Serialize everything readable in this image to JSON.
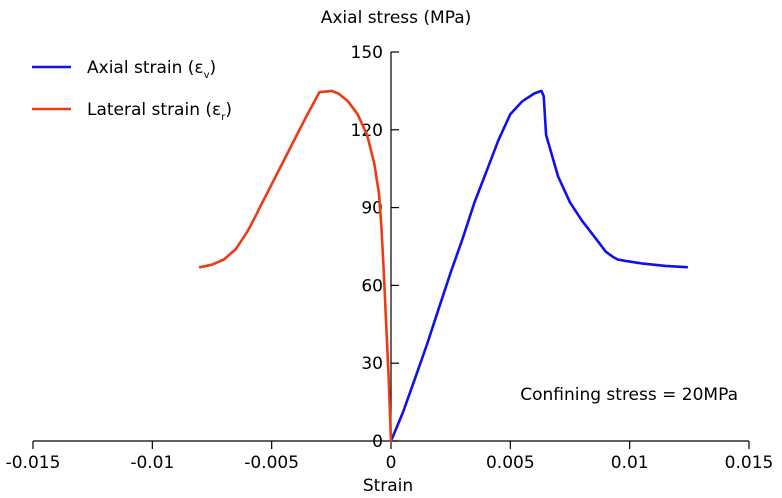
{
  "chart_data": {
    "type": "line",
    "title": "Axial stress (MPa)",
    "xlabel": "Strain",
    "ylabel": "Axial stress (MPa)",
    "xlim": [
      -0.015,
      0.015
    ],
    "ylim": [
      0,
      150
    ],
    "xticks": [
      -0.015,
      -0.01,
      -0.005,
      0,
      0.005,
      0.01,
      0.015
    ],
    "xtick_labels": [
      "-0.015",
      "-0.01",
      "-0.005",
      "0",
      "0.005",
      "0.01",
      "0.015"
    ],
    "yticks": [
      0,
      30,
      60,
      90,
      120,
      150
    ],
    "ytick_labels": [
      "0",
      "30",
      "60",
      "90",
      "120",
      "150"
    ],
    "annotation": "Confining stress = 20MPa",
    "legend_position": "top-left",
    "series": [
      {
        "name": "Axial strain",
        "legend_label": "Axial strain (ε",
        "legend_sub": "v",
        "legend_close": ")",
        "color": "#1010ee",
        "x": [
          0,
          0.0005,
          0.001,
          0.0015,
          0.002,
          0.0025,
          0.003,
          0.0035,
          0.004,
          0.0045,
          0.005,
          0.0055,
          0.006,
          0.0063,
          0.0064,
          0.0065,
          0.007,
          0.0075,
          0.008,
          0.0085,
          0.009,
          0.0093,
          0.0095,
          0.0098,
          0.0105,
          0.0115,
          0.0124
        ],
        "y": [
          0,
          11,
          24,
          37,
          51,
          65,
          78,
          92,
          104,
          116,
          126,
          131,
          134,
          135,
          133,
          118,
          102,
          92,
          85,
          79,
          73,
          71,
          70,
          69.5,
          68.5,
          67.5,
          67
        ]
      },
      {
        "name": "Lateral strain",
        "legend_label": "Lateral strain (ε",
        "legend_sub": "r",
        "legend_close": ")",
        "color": "#ee3b16",
        "x": [
          0,
          -0.0001,
          -0.0002,
          -0.0003,
          -0.0004,
          -0.0005,
          -0.0007,
          -0.001,
          -0.0014,
          -0.0018,
          -0.0022,
          -0.0025,
          -0.003,
          -0.0035,
          -0.004,
          -0.0045,
          -0.005,
          -0.0055,
          -0.0056,
          -0.006,
          -0.0065,
          -0.007,
          -0.0075,
          -0.008
        ],
        "y": [
          0,
          25,
          45,
          65,
          82,
          95,
          107,
          118,
          126,
          131,
          134,
          135,
          134.5,
          126,
          117,
          108,
          99,
          90,
          88,
          81,
          74,
          70,
          68,
          67
        ]
      }
    ]
  }
}
